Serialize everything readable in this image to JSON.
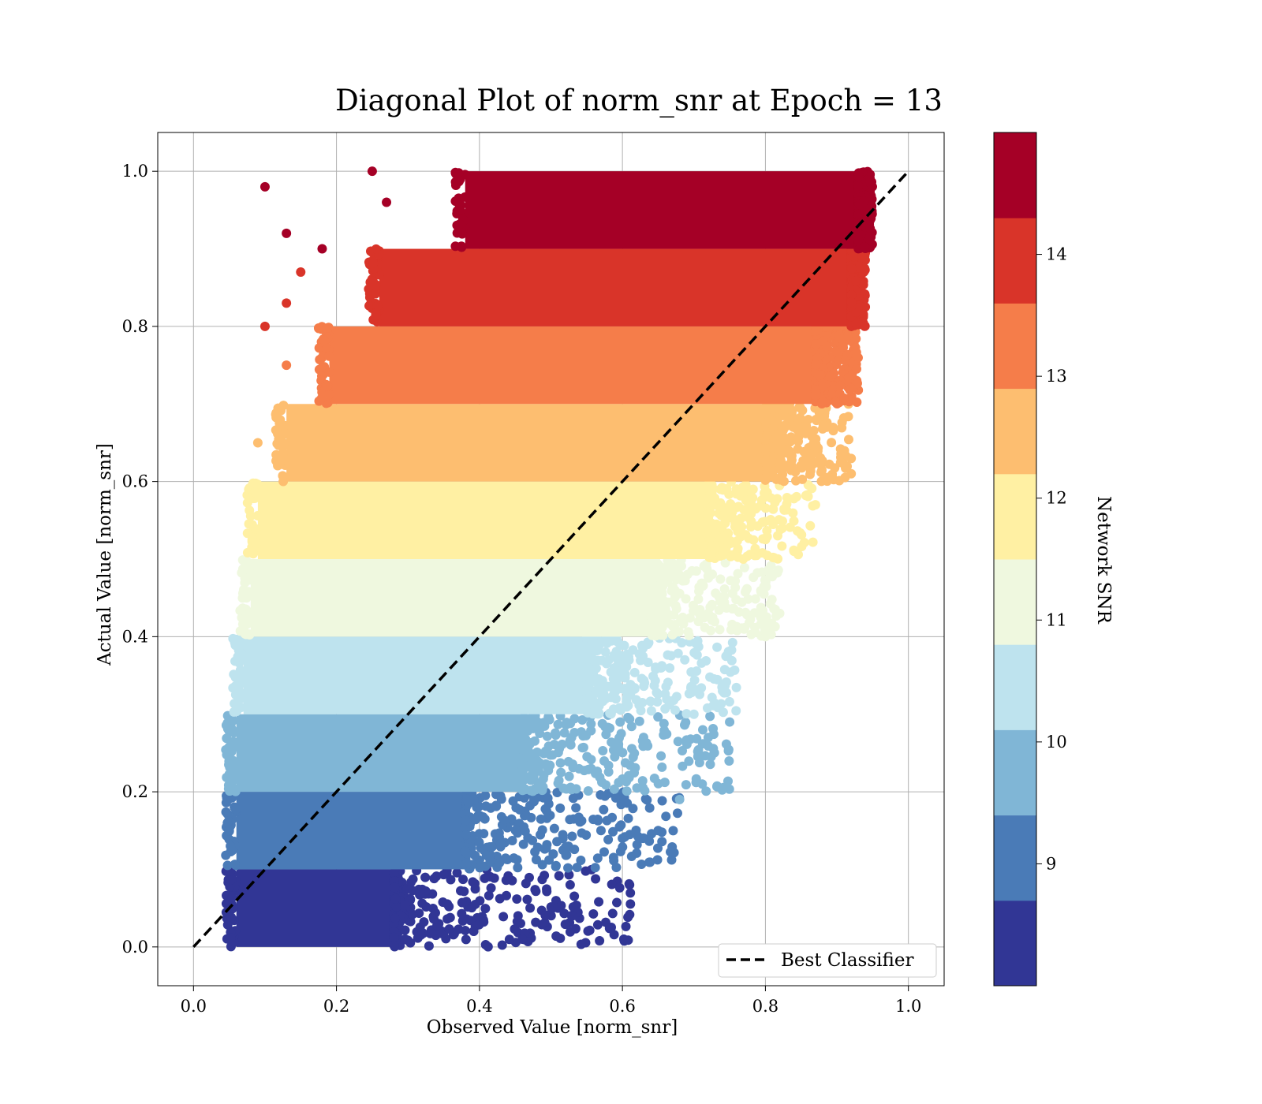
{
  "chart_data": {
    "type": "scatter",
    "title": "Diagonal Plot of norm_snr at Epoch = 13",
    "xlabel": "Observed Value [norm_snr]",
    "ylabel": "Actual Value [norm_snr]",
    "xlim": [
      -0.05,
      1.05
    ],
    "ylim": [
      -0.05,
      1.05
    ],
    "xticks": [
      "0.0",
      "0.2",
      "0.4",
      "0.6",
      "0.8",
      "1.0"
    ],
    "yticks": [
      "0.0",
      "0.2",
      "0.4",
      "0.6",
      "0.8",
      "1.0"
    ],
    "grid": true,
    "legend": {
      "entries": [
        {
          "label": "Best Classifier",
          "style": "dashed",
          "color": "#000000"
        }
      ],
      "placement": "lower-right"
    },
    "reference_line": {
      "label": "Best Classifier",
      "x": [
        0.0,
        1.0
      ],
      "y": [
        0.0,
        1.0
      ],
      "style": "dashed"
    },
    "colorbar": {
      "label": "Network SNR",
      "range": [
        8,
        15
      ],
      "ticks": [
        "9",
        "10",
        "11",
        "12",
        "13",
        "14"
      ],
      "colors": [
        "#313695",
        "#4a7bb7",
        "#80b6d6",
        "#bee3ee",
        "#eff8df",
        "#fff0a3",
        "#fdbe70",
        "#f57d4a",
        "#d93429",
        "#a50026"
      ]
    },
    "bands": [
      {
        "y": [
          0.0,
          0.1
        ],
        "x_core": [
          0.06,
          0.28
        ],
        "x_tail": 0.62,
        "color": "#313695"
      },
      {
        "y": [
          0.1,
          0.2
        ],
        "x_core": [
          0.06,
          0.38
        ],
        "x_tail": 0.68,
        "color": "#4a7bb7"
      },
      {
        "y": [
          0.2,
          0.3
        ],
        "x_core": [
          0.06,
          0.46
        ],
        "x_tail": 0.75,
        "color": "#80b6d6"
      },
      {
        "y": [
          0.3,
          0.4
        ],
        "x_core": [
          0.07,
          0.55
        ],
        "x_tail": 0.76,
        "color": "#bee3ee"
      },
      {
        "y": [
          0.4,
          0.5
        ],
        "x_core": [
          0.08,
          0.64
        ],
        "x_tail": 0.82,
        "color": "#eff8df"
      },
      {
        "y": [
          0.5,
          0.6
        ],
        "x_core": [
          0.09,
          0.72
        ],
        "x_tail": 0.87,
        "color": "#fff0a3"
      },
      {
        "y": [
          0.6,
          0.7
        ],
        "x_core": [
          0.13,
          0.8
        ],
        "x_tail": 0.92,
        "color": "#fdbe70"
      },
      {
        "y": [
          0.7,
          0.8
        ],
        "x_core": [
          0.19,
          0.87
        ],
        "x_tail": 0.93,
        "color": "#f57d4a"
      },
      {
        "y": [
          0.8,
          0.9
        ],
        "x_core": [
          0.26,
          0.92
        ],
        "x_tail": 0.94,
        "color": "#d93429"
      },
      {
        "y": [
          0.9,
          1.0
        ],
        "x_core": [
          0.38,
          0.93
        ],
        "x_tail": 0.95,
        "color": "#a50026"
      }
    ],
    "outliers": [
      [
        0.1,
        0.98,
        "#a50026"
      ],
      [
        0.13,
        0.92,
        "#a50026"
      ],
      [
        0.18,
        0.9,
        "#a50026"
      ],
      [
        0.25,
        1.0,
        "#a50026"
      ],
      [
        0.27,
        0.96,
        "#a50026"
      ],
      [
        0.94,
        0.94,
        "#a50026"
      ],
      [
        0.1,
        0.8,
        "#d93429"
      ],
      [
        0.15,
        0.87,
        "#d93429"
      ],
      [
        0.13,
        0.83,
        "#d93429"
      ],
      [
        0.13,
        0.75,
        "#f57d4a"
      ],
      [
        0.92,
        0.72,
        "#f57d4a"
      ],
      [
        0.09,
        0.65,
        "#fdbe70"
      ],
      [
        0.92,
        0.61,
        "#fdbe70"
      ],
      [
        0.86,
        0.68,
        "#fdbe70"
      ],
      [
        0.08,
        0.51,
        "#fff0a3"
      ],
      [
        0.84,
        0.51,
        "#fff0a3"
      ],
      [
        0.87,
        0.57,
        "#fff0a3"
      ],
      [
        0.8,
        0.4,
        "#eff8df"
      ],
      [
        0.82,
        0.43,
        "#eff8df"
      ],
      [
        0.74,
        0.33,
        "#bee3ee"
      ],
      [
        0.7,
        0.3,
        "#bee3ee"
      ],
      [
        0.68,
        0.19,
        "#80b6d6"
      ],
      [
        0.75,
        0.29,
        "#80b6d6"
      ],
      [
        0.72,
        0.27,
        "#80b6d6"
      ],
      [
        0.65,
        0.15,
        "#4a7bb7"
      ],
      [
        0.6,
        0.14,
        "#4a7bb7"
      ],
      [
        0.57,
        0.15,
        "#4a7bb7"
      ],
      [
        0.61,
        0.08,
        "#313695"
      ],
      [
        0.53,
        0.04,
        "#313695"
      ],
      [
        0.46,
        0.01,
        "#313695"
      ],
      [
        0.51,
        0.05,
        "#313695"
      ]
    ]
  }
}
